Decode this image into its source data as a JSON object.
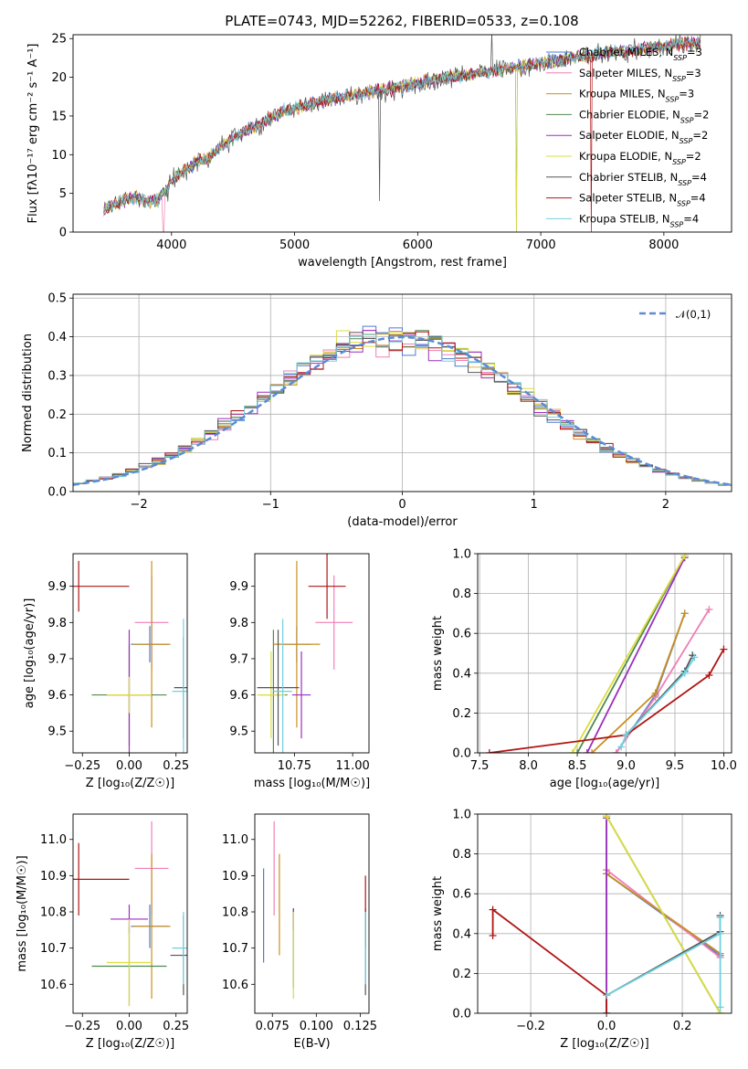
{
  "title": "PLATE=0743, MJD=52262, FIBERID=0533, z=0.108",
  "colors": {
    "Chabrier MILES": "#4a7bd8",
    "Salpeter MILES": "#f07eb5",
    "Kroupa MILES": "#c8901e",
    "Chabrier ELODIE": "#4f8a4f",
    "Salpeter ELODIE": "#9b2fbf",
    "Kroupa ELODIE": "#dcdc40",
    "Chabrier STELIB": "#555555",
    "Salpeter STELIB": "#b01515",
    "Kroupa STELIB": "#70d0e0"
  },
  "chart_data": [
    {
      "type": "line",
      "panel": "spectrum",
      "xlabel": "wavelength [Angstrom, rest frame]",
      "ylabel": "Flux [fλ10⁻¹⁷ erg cm⁻² s⁻¹ A⁻¹]",
      "xlim": [
        3200,
        8550
      ],
      "ylim": [
        0,
        25.5
      ],
      "xticks": [
        4000,
        5000,
        6000,
        7000,
        8000
      ],
      "yticks": [
        0,
        5,
        10,
        15,
        20,
        25
      ],
      "grid": false,
      "legend_position": "lower-right",
      "continuum": {
        "x": [
          3450,
          3600,
          3700,
          3800,
          3900,
          4000,
          4100,
          4200,
          4300,
          4400,
          4500,
          4600,
          4700,
          4800,
          4900,
          5000,
          5200,
          5400,
          5600,
          5800,
          6000,
          6200,
          6400,
          6600,
          6800,
          7000,
          7200,
          7400,
          7600,
          7800,
          8000,
          8200,
          8300
        ],
        "y": [
          3.0,
          4.0,
          4.5,
          4.0,
          4.2,
          6.5,
          8.0,
          9.0,
          9.5,
          11.0,
          12.2,
          13.0,
          13.8,
          14.8,
          15.5,
          16.0,
          16.8,
          17.5,
          18.0,
          18.6,
          19.2,
          19.8,
          20.3,
          20.8,
          21.3,
          21.9,
          22.4,
          22.8,
          23.2,
          23.6,
          24.0,
          24.4,
          24.4
        ]
      },
      "series": [
        {
          "name": "Chabrier MILES, N_SSP=3",
          "label_main": "Chabrier MILES, N",
          "label_sub": "SSP",
          "label_end": "=3"
        },
        {
          "name": "Salpeter MILES, N_SSP=3",
          "label_main": "Salpeter MILES, N",
          "label_sub": "SSP",
          "label_end": "=3"
        },
        {
          "name": "Kroupa MILES, N_SSP=3",
          "label_main": "Kroupa MILES, N",
          "label_sub": "SSP",
          "label_end": "=3"
        },
        {
          "name": "Chabrier ELODIE, N_SSP=2",
          "label_main": "Chabrier ELODIE, N",
          "label_sub": "SSP",
          "label_end": "=2"
        },
        {
          "name": "Salpeter ELODIE, N_SSP=2",
          "label_main": "Salpeter ELODIE, N",
          "label_sub": "SSP",
          "label_end": "=2"
        },
        {
          "name": "Kroupa ELODIE, N_SSP=2",
          "label_main": "Kroupa ELODIE, N",
          "label_sub": "SSP",
          "label_end": "=2"
        },
        {
          "name": "Chabrier STELIB, N_SSP=4",
          "label_main": "Chabrier STELIB, N",
          "label_sub": "SSP",
          "label_end": "=4"
        },
        {
          "name": "Salpeter STELIB, N_SSP=4",
          "label_main": "Salpeter STELIB, N",
          "label_sub": "SSP",
          "label_end": "=4"
        },
        {
          "name": "Kroupa STELIB, N_SSP=4",
          "label_main": "Kroupa STELIB, N",
          "label_sub": "SSP",
          "label_end": "=4"
        }
      ]
    },
    {
      "type": "histogram",
      "panel": "residuals",
      "xlabel": "(data-model)/error",
      "ylabel": "Normed distribution",
      "xlim": [
        -2.5,
        2.5
      ],
      "ylim": [
        0,
        0.51
      ],
      "xticks": [
        -2,
        -1,
        0,
        1,
        2
      ],
      "yticks": [
        0.0,
        0.1,
        0.2,
        0.3,
        0.4,
        0.5
      ],
      "grid": true,
      "legend": "𝒩(0,1)",
      "legend_position": "top-right",
      "bin_start": -2.5,
      "bin_width": 0.1
    },
    {
      "type": "errorbar",
      "panel": "age-vs-Z",
      "xlabel": "Z [log₁₀(Z/Z☉)]",
      "ylabel": "age  [log₁₀(age/yr)]",
      "xlim": [
        -0.3,
        0.31
      ],
      "ylim": [
        9.44,
        9.99
      ],
      "xticks": [
        -0.25,
        0.0,
        0.25
      ],
      "yticks": [
        9.5,
        9.6,
        9.7,
        9.8,
        9.9
      ],
      "grid": false,
      "points": [
        {
          "series": "Chabrier MILES",
          "x": 0.11,
          "xerr": 0.1,
          "y": 9.74,
          "yerr": 0.05
        },
        {
          "series": "Salpeter MILES",
          "x": 0.12,
          "xerr": 0.09,
          "y": 9.8,
          "yerr": 0.13
        },
        {
          "series": "Kroupa MILES",
          "x": 0.12,
          "xerr": 0.1,
          "y": 9.74,
          "yerr": 0.23
        },
        {
          "series": "Chabrier ELODIE",
          "x": 0.0,
          "xerr": 0.2,
          "y": 9.6,
          "yerr": 0.14
        },
        {
          "series": "Salpeter ELODIE",
          "x": 0.0,
          "xerr": 0.12,
          "y": 9.6,
          "yerr": 0.18
        },
        {
          "series": "Kroupa ELODIE",
          "x": 0.0,
          "xerr": 0.12,
          "y": 9.6,
          "yerr": 0.05
        },
        {
          "series": "Chabrier STELIB",
          "x": 0.29,
          "xerr": 0.05,
          "y": 9.62,
          "yerr": 0.14
        },
        {
          "series": "Salpeter STELIB",
          "x": -0.27,
          "xerr": 0.27,
          "y": 9.9,
          "yerr": 0.07
        },
        {
          "series": "Kroupa STELIB",
          "x": 0.29,
          "xerr": 0.06,
          "y": 9.61,
          "yerr": 0.2
        }
      ]
    },
    {
      "type": "errorbar",
      "panel": "age-vs-mass",
      "xlabel": "mass [log₁₀(M/M☉)]",
      "xlim": [
        10.58,
        11.07
      ],
      "ylim": [
        9.44,
        9.99
      ],
      "xticks": [
        10.75,
        11.0
      ],
      "yticks": [
        9.5,
        9.6,
        9.7,
        9.8,
        9.9
      ],
      "grid": false,
      "points": [
        {
          "series": "Chabrier MILES",
          "x": 10.76,
          "xerr": 0.06,
          "y": 9.74,
          "yerr": 0.05
        },
        {
          "series": "Salpeter MILES",
          "x": 10.92,
          "xerr": 0.08,
          "y": 9.8,
          "yerr": 0.13
        },
        {
          "series": "Kroupa MILES",
          "x": 10.76,
          "xerr": 0.1,
          "y": 9.74,
          "yerr": 0.23
        },
        {
          "series": "Chabrier ELODIE",
          "x": 10.66,
          "xerr": 0.06,
          "y": 9.6,
          "yerr": 0.18
        },
        {
          "series": "Salpeter ELODIE",
          "x": 10.78,
          "xerr": 0.04,
          "y": 9.6,
          "yerr": 0.12
        },
        {
          "series": "Kroupa ELODIE",
          "x": 10.65,
          "xerr": 0.06,
          "y": 9.6,
          "yerr": 0.12
        },
        {
          "series": "Chabrier STELIB",
          "x": 10.68,
          "xerr": 0.09,
          "y": 9.62,
          "yerr": 0.16
        },
        {
          "series": "Salpeter STELIB",
          "x": 10.89,
          "xerr": 0.08,
          "y": 9.9,
          "yerr": 0.09
        },
        {
          "series": "Kroupa STELIB",
          "x": 10.7,
          "xerr": 0.04,
          "y": 9.61,
          "yerr": 0.2
        }
      ]
    },
    {
      "type": "line",
      "panel": "weight-vs-age",
      "xlabel": "age  [log₁₀(age/yr)]",
      "ylabel": "mass weight",
      "xlim": [
        7.48,
        10.08
      ],
      "ylim": [
        0,
        1.0
      ],
      "xticks": [
        7.5,
        8.0,
        8.5,
        9.0,
        9.5,
        10.0
      ],
      "yticks": [
        0.0,
        0.2,
        0.4,
        0.6,
        0.8,
        1.0
      ],
      "grid": true,
      "series": [
        {
          "series": "Chabrier MILES",
          "x": [
            8.9,
            9.3,
            9.6
          ],
          "y": [
            0.0,
            0.29,
            0.7
          ]
        },
        {
          "series": "Salpeter MILES",
          "x": [
            8.9,
            9.3,
            9.85
          ],
          "y": [
            0.0,
            0.28,
            0.72
          ]
        },
        {
          "series": "Kroupa MILES",
          "x": [
            8.65,
            9.3,
            9.6
          ],
          "y": [
            0.0,
            0.3,
            0.7
          ]
        },
        {
          "series": "Chabrier ELODIE",
          "x": [
            8.5,
            9.6
          ],
          "y": [
            0.0,
            0.99
          ]
        },
        {
          "series": "Salpeter ELODIE",
          "x": [
            8.6,
            9.6
          ],
          "y": [
            0.0,
            0.98
          ]
        },
        {
          "series": "Kroupa ELODIE",
          "x": [
            8.45,
            9.6
          ],
          "y": [
            0.0,
            0.99
          ]
        },
        {
          "series": "Chabrier STELIB",
          "x": [
            9.0,
            9.6,
            9.68
          ],
          "y": [
            0.09,
            0.41,
            0.49
          ]
        },
        {
          "series": "Salpeter STELIB",
          "x": [
            7.6,
            9.0,
            9.85,
            10.0
          ],
          "y": [
            0.0,
            0.09,
            0.39,
            0.52
          ]
        },
        {
          "series": "Kroupa STELIB",
          "x": [
            8.95,
            9.0,
            9.6,
            9.7
          ],
          "y": [
            0.03,
            0.09,
            0.4,
            0.48
          ]
        }
      ]
    },
    {
      "type": "errorbar",
      "panel": "mass-vs-Z",
      "xlabel": "Z [log₁₀(Z/Z☉)]",
      "ylabel": "mass [log₁₀(M/M☉)]",
      "xlim": [
        -0.3,
        0.31
      ],
      "ylim": [
        10.52,
        11.07
      ],
      "xticks": [
        -0.25,
        0.0,
        0.25
      ],
      "yticks": [
        10.6,
        10.7,
        10.8,
        10.9,
        11.0
      ],
      "grid": false,
      "points": [
        {
          "series": "Chabrier MILES",
          "x": 0.11,
          "xerr": 0.1,
          "y": 10.76,
          "yerr": 0.06
        },
        {
          "series": "Salpeter MILES",
          "x": 0.12,
          "xerr": 0.09,
          "y": 10.92,
          "yerr": 0.13
        },
        {
          "series": "Kroupa MILES",
          "x": 0.12,
          "xerr": 0.1,
          "y": 10.76,
          "yerr": 0.2
        },
        {
          "series": "Chabrier ELODIE",
          "x": 0.0,
          "xerr": 0.2,
          "y": 10.65,
          "yerr": 0.11
        },
        {
          "series": "Salpeter ELODIE",
          "x": 0.0,
          "xerr": 0.1,
          "y": 10.78,
          "yerr": 0.04
        },
        {
          "series": "Kroupa ELODIE",
          "x": 0.0,
          "xerr": 0.12,
          "y": 10.66,
          "yerr": 0.12
        },
        {
          "series": "Chabrier STELIB",
          "x": 0.29,
          "xerr": 0.07,
          "y": 10.68,
          "yerr": 0.11
        },
        {
          "series": "Salpeter STELIB",
          "x": -0.27,
          "xerr": 0.27,
          "y": 10.89,
          "yerr": 0.1
        },
        {
          "series": "Kroupa STELIB",
          "x": 0.29,
          "xerr": 0.06,
          "y": 10.7,
          "yerr": 0.1
        }
      ]
    },
    {
      "type": "errorbar",
      "panel": "mass-vs-ebv",
      "xlabel": "E(B-V)",
      "xlim": [
        0.065,
        0.13
      ],
      "ylim": [
        10.52,
        11.07
      ],
      "xticks": [
        0.075,
        0.1,
        0.125
      ],
      "yticks": [
        10.6,
        10.7,
        10.8,
        10.9,
        11.0
      ],
      "grid": false,
      "points": [
        {
          "series": "Chabrier MILES",
          "x": 0.07,
          "y": 10.79,
          "yerr": 0.13
        },
        {
          "series": "Salpeter MILES",
          "x": 0.076,
          "y": 10.92,
          "yerr": 0.13
        },
        {
          "series": "Kroupa MILES",
          "x": 0.079,
          "y": 10.82,
          "yerr": 0.14
        },
        {
          "series": "Chabrier ELODIE",
          "x": 0.087,
          "y": 10.7,
          "yerr": 0.11
        },
        {
          "series": "Salpeter ELODIE",
          "x": 0.087,
          "y": 10.78,
          "yerr": 0.03
        },
        {
          "series": "Kroupa ELODIE",
          "x": 0.087,
          "y": 10.68,
          "yerr": 0.12
        },
        {
          "series": "Chabrier STELIB",
          "x": 0.128,
          "y": 10.69,
          "yerr": 0.12
        },
        {
          "series": "Salpeter STELIB",
          "x": 0.128,
          "y": 10.8,
          "yerr": 0.1
        },
        {
          "series": "Kroupa STELIB",
          "x": 0.128,
          "y": 10.7,
          "yerr": 0.1
        }
      ]
    },
    {
      "type": "line",
      "panel": "weight-vs-Z",
      "xlabel": "Z [log₁₀(Z/Z☉)]",
      "ylabel": "mass weight",
      "xlim": [
        -0.34,
        0.33
      ],
      "ylim": [
        0,
        1.0
      ],
      "xticks": [
        -0.2,
        0.0,
        0.2
      ],
      "yticks": [
        0.0,
        0.2,
        0.4,
        0.6,
        0.8,
        1.0
      ],
      "grid": true,
      "series": [
        {
          "series": "Chabrier MILES",
          "x": [
            0.0,
            0.3
          ],
          "y": [
            0.7,
            0.29
          ]
        },
        {
          "series": "Salpeter MILES",
          "x": [
            0.0,
            0.3
          ],
          "y": [
            0.72,
            0.28
          ]
        },
        {
          "series": "Kroupa MILES",
          "x": [
            0.0,
            0.3
          ],
          "y": [
            0.7,
            0.3
          ]
        },
        {
          "series": "Chabrier ELODIE",
          "x": [
            0.0,
            0.0,
            0.3
          ],
          "y": [
            0.0,
            0.99,
            0.0
          ]
        },
        {
          "series": "Salpeter ELODIE",
          "x": [
            0.0,
            0.0
          ],
          "y": [
            0.0,
            0.98
          ]
        },
        {
          "series": "Kroupa ELODIE",
          "x": [
            0.0,
            0.3
          ],
          "y": [
            0.99,
            0.0
          ]
        },
        {
          "series": "Chabrier STELIB",
          "x": [
            0.0,
            0.3,
            0.3
          ],
          "y": [
            0.09,
            0.41,
            0.49
          ]
        },
        {
          "series": "Salpeter STELIB",
          "x": [
            0.0,
            0.0,
            -0.3,
            -0.3
          ],
          "y": [
            0.0,
            0.09,
            0.52,
            0.39
          ]
        },
        {
          "series": "Kroupa STELIB",
          "x": [
            0.0,
            0.3,
            0.3,
            0.3
          ],
          "y": [
            0.09,
            0.4,
            0.48,
            0.03
          ]
        }
      ]
    }
  ]
}
